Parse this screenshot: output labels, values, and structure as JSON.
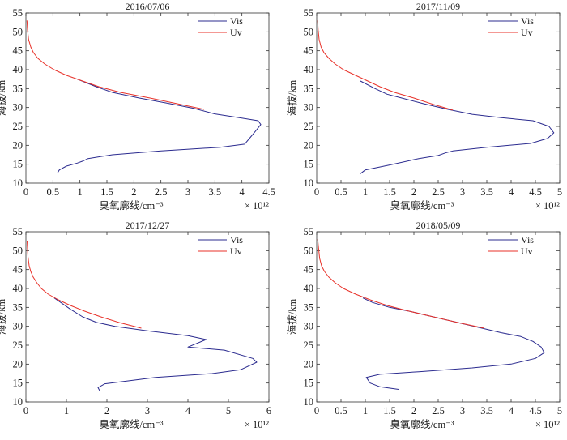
{
  "figure": {
    "panels": [
      {
        "id": "panel-1"
      },
      {
        "id": "panel-2"
      },
      {
        "id": "panel-3"
      },
      {
        "id": "panel-4"
      }
    ]
  },
  "chart_data": [
    {
      "type": "line",
      "title": "2016/07/06",
      "xlabel": "臭氧廓线/cm⁻³",
      "ylabel": "海拔/km",
      "x_multiplier": "× 10¹²",
      "xlim": [
        0,
        4.5
      ],
      "ylim": [
        10,
        55
      ],
      "xticks": [
        "0",
        "0.5",
        "1",
        "1.5",
        "2",
        "2.5",
        "3",
        "3.5",
        "4",
        "4.5"
      ],
      "yticks": [
        "10",
        "15",
        "20",
        "25",
        "30",
        "35",
        "40",
        "45",
        "50",
        "55"
      ],
      "legend_position": "top-right",
      "series": [
        {
          "name": "Vis",
          "color": "#2b2b8f",
          "x": [
            0.58,
            0.62,
            0.75,
            0.95,
            1.05,
            1.15,
            1.6,
            2.5,
            3.6,
            4.05,
            4.15,
            4.25,
            4.35,
            4.3,
            3.95,
            3.5,
            3.1,
            2.6,
            2.1,
            1.6,
            1.3,
            0.95
          ],
          "y": [
            12.6,
            13.5,
            14.5,
            15.3,
            15.8,
            16.5,
            17.5,
            18.5,
            19.5,
            20.3,
            22.0,
            23.7,
            25.5,
            26.5,
            27.3,
            28.3,
            29.8,
            31.2,
            32.5,
            34.0,
            35.5,
            37.5
          ]
        },
        {
          "name": "Uv",
          "color": "#e8322a",
          "x": [
            3.3,
            2.8,
            2.3,
            1.75,
            1.35,
            1.05,
            0.75,
            0.52,
            0.35,
            0.22,
            0.14,
            0.09,
            0.05,
            0.03,
            0.02
          ],
          "y": [
            29.5,
            31.0,
            32.5,
            34.0,
            35.5,
            37.0,
            38.5,
            40.0,
            41.5,
            43.0,
            44.5,
            46.0,
            48.0,
            50.5,
            53.0
          ]
        }
      ]
    },
    {
      "type": "line",
      "title": "2017/11/09",
      "xlabel": "臭氧廓线/cm⁻³",
      "ylabel": "海拔/km",
      "x_multiplier": "× 10¹²",
      "xlim": [
        0,
        5
      ],
      "ylim": [
        10,
        55
      ],
      "xticks": [
        "0",
        "0.5",
        "1",
        "1.5",
        "2",
        "2.5",
        "3",
        "3.5",
        "4",
        "4.5",
        "5"
      ],
      "yticks": [
        "10",
        "15",
        "20",
        "25",
        "30",
        "35",
        "40",
        "45",
        "50",
        "55"
      ],
      "legend_position": "top-right",
      "series": [
        {
          "name": "Vis",
          "color": "#2b2b8f",
          "x": [
            0.9,
            1.0,
            1.5,
            2.1,
            2.5,
            2.65,
            2.8,
            3.5,
            4.4,
            4.75,
            4.88,
            4.78,
            4.45,
            3.8,
            3.2,
            2.7,
            2.2,
            1.75,
            1.45,
            1.2,
            0.9
          ],
          "y": [
            12.5,
            13.5,
            14.8,
            16.5,
            17.3,
            18.0,
            18.5,
            19.5,
            20.5,
            21.8,
            23.3,
            25.0,
            26.5,
            27.3,
            28.2,
            29.5,
            31.0,
            32.5,
            33.5,
            35.0,
            37.0
          ]
        },
        {
          "name": "Uv",
          "color": "#e8322a",
          "x": [
            2.8,
            2.4,
            2.0,
            1.6,
            1.3,
            1.05,
            0.8,
            0.55,
            0.38,
            0.25,
            0.15,
            0.09,
            0.05,
            0.03,
            0.02
          ],
          "y": [
            29.3,
            30.8,
            32.5,
            34.0,
            35.5,
            37.0,
            38.5,
            40.0,
            41.5,
            43.0,
            44.5,
            46.0,
            48.0,
            50.5,
            53.0
          ]
        }
      ]
    },
    {
      "type": "line",
      "title": "2017/12/27",
      "xlabel": "臭氧廓线/cm⁻³",
      "ylabel": "海拔/km",
      "x_multiplier": "× 10¹²",
      "xlim": [
        0,
        6
      ],
      "ylim": [
        10,
        55
      ],
      "xticks": [
        "0",
        "1",
        "2",
        "3",
        "4",
        "5",
        "6"
      ],
      "yticks": [
        "10",
        "15",
        "20",
        "25",
        "30",
        "35",
        "40",
        "45",
        "50",
        "55"
      ],
      "legend_position": "top-right",
      "series": [
        {
          "name": "Vis",
          "color": "#2b2b8f",
          "x": [
            1.82,
            1.78,
            1.95,
            3.2,
            4.6,
            5.3,
            5.7,
            5.6,
            4.9,
            4.0,
            4.45,
            4.0,
            3.0,
            2.2,
            1.75,
            1.4,
            1.1,
            0.7
          ],
          "y": [
            13.0,
            13.8,
            14.8,
            16.5,
            17.5,
            18.5,
            20.5,
            21.5,
            23.7,
            24.5,
            26.5,
            27.5,
            28.8,
            30.0,
            31.0,
            32.5,
            34.5,
            37.5
          ]
        },
        {
          "name": "Uv",
          "color": "#e8322a",
          "x": [
            2.85,
            2.3,
            1.85,
            1.45,
            1.1,
            0.8,
            0.55,
            0.38,
            0.27,
            0.18,
            0.12,
            0.08,
            0.05,
            0.03
          ],
          "y": [
            29.5,
            31.0,
            32.5,
            34.0,
            35.5,
            37.0,
            38.5,
            40.0,
            41.5,
            43.0,
            44.5,
            46.0,
            48.5,
            52.5
          ]
        }
      ]
    },
    {
      "type": "line",
      "title": "2018/05/09",
      "xlabel": "臭氧廓线/cm⁻³",
      "ylabel": "海拔/km",
      "x_multiplier": "× 10¹²",
      "xlim": [
        0,
        5
      ],
      "ylim": [
        10,
        55
      ],
      "xticks": [
        "0",
        "0.5",
        "1",
        "1.5",
        "2",
        "2.5",
        "3",
        "3.5",
        "4",
        "4.5",
        "5"
      ],
      "yticks": [
        "10",
        "15",
        "20",
        "25",
        "30",
        "35",
        "40",
        "45",
        "50",
        "55"
      ],
      "legend_position": "top-right",
      "series": [
        {
          "name": "Vis",
          "color": "#2b2b8f",
          "x": [
            1.7,
            1.3,
            1.1,
            1.02,
            1.3,
            2.1,
            3.2,
            4.0,
            4.5,
            4.68,
            4.62,
            4.45,
            4.2,
            3.8,
            3.4,
            2.9,
            2.4,
            1.9,
            1.5,
            1.15,
            0.95
          ],
          "y": [
            13.3,
            14.0,
            15.0,
            16.5,
            17.3,
            18.0,
            19.0,
            20.0,
            21.5,
            23.0,
            24.5,
            26.0,
            27.3,
            28.3,
            29.5,
            31.0,
            32.5,
            34.0,
            35.0,
            36.3,
            37.5
          ]
        },
        {
          "name": "Uv",
          "color": "#e8322a",
          "x": [
            3.45,
            2.9,
            2.4,
            1.9,
            1.45,
            1.1,
            0.8,
            0.55,
            0.38,
            0.25,
            0.16,
            0.1,
            0.06,
            0.04,
            0.02
          ],
          "y": [
            29.5,
            31.0,
            32.5,
            34.0,
            35.5,
            37.0,
            38.5,
            40.0,
            41.5,
            43.0,
            44.5,
            46.0,
            48.0,
            50.5,
            53.0
          ]
        }
      ]
    }
  ]
}
